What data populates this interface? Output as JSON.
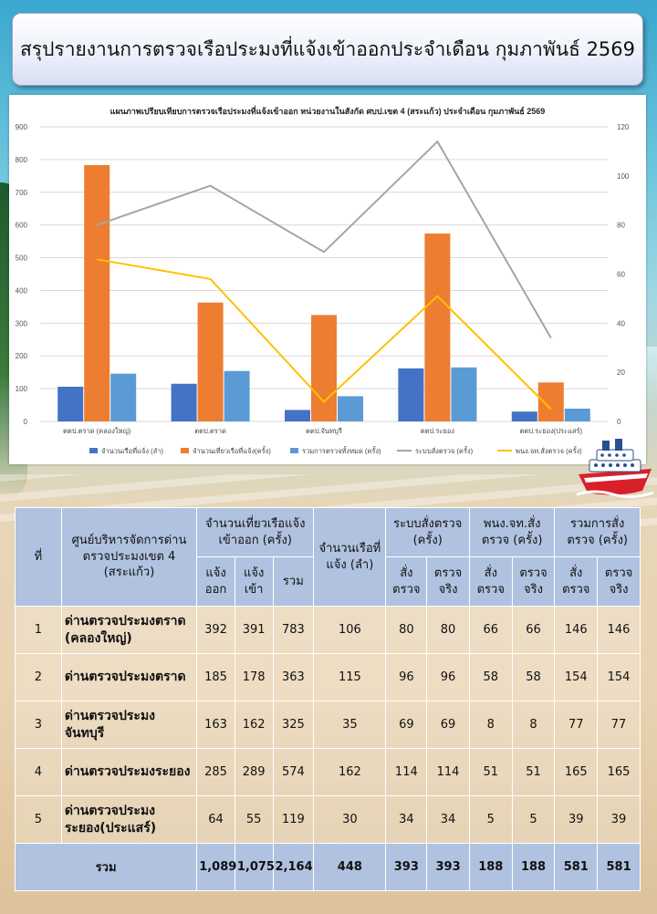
{
  "title": "สรุปรายงานการตรวจเรือประมงที่แจ้งเข้าออกประจำเดือน กุมภาพันธ์ 2569",
  "chart_data": {
    "type": "bar",
    "title": "แผนภาพเปรียบเทียบการตรวจเรือประมงที่แจ้งเข้าออก หน่วยงานในสังกัด ศบป.เขต 4 (สระแก้ว) ประจำเดือน กุมภาพันธ์ 2569",
    "categories": [
      "ตตป.ตราด (คลองใหญ่)",
      "ตตป.ตราด",
      "ตตป.จันทบุรี",
      "ตตป.ระยอง",
      "ตตป.ระยอง(ประแสร์)"
    ],
    "left_axis": {
      "ylim": [
        0,
        900
      ],
      "ticks": [
        0,
        100,
        200,
        300,
        400,
        500,
        600,
        700,
        800,
        900
      ]
    },
    "right_axis": {
      "ylim": [
        0,
        120
      ],
      "ticks": [
        0,
        20,
        40,
        60,
        80,
        100,
        120
      ]
    },
    "grid": true,
    "legend_position": "bottom",
    "series": [
      {
        "name": "จำนวนเรือที่แจ้ง (ลำ)",
        "kind": "bar",
        "axis": "left",
        "color": "#4472c4",
        "values": [
          106,
          115,
          35,
          162,
          30
        ]
      },
      {
        "name": "จำนวนเที่ยวเรือที่แจ้ง(ครั้ง)",
        "kind": "bar",
        "axis": "left",
        "color": "#ed7d31",
        "values": [
          783,
          363,
          325,
          574,
          119
        ]
      },
      {
        "name": "รวมการตรวจทั้งหมด (ครั้ง)",
        "kind": "bar",
        "axis": "left",
        "color": "#5b9bd5",
        "values": [
          146,
          154,
          77,
          165,
          39
        ]
      },
      {
        "name": "ระบบสั่งตรวจ (ครั้ง)",
        "kind": "line",
        "axis": "right",
        "color": "#a5a5a5",
        "values": [
          80,
          96,
          69,
          114,
          34
        ]
      },
      {
        "name": "พนง.จท.สั่งตรวจ (ครั้ง)",
        "kind": "line",
        "axis": "right",
        "color": "#ffc000",
        "values": [
          66,
          58,
          8,
          51,
          5
        ]
      }
    ]
  },
  "table": {
    "headers": {
      "no": "ที่",
      "center": "ศูนย์บริหารจัดการด่านตรวจประมงเขต 4 (สระแก้ว)",
      "trips": "จำนวนเที่ยวเรือแจ้งเข้าออก (ครั้ง)",
      "trips_out": "แจ้งออก",
      "trips_in": "แจ้งเข้า",
      "trips_total": "รวม",
      "boats": "จำนวนเรือที่แจ้ง (ลำ)",
      "system": "ระบบสั่งตรวจ (ครั้ง)",
      "officer": "พนง.จท.สั่งตรวจ (ครั้ง)",
      "total": "รวมการสั่งตรวจ (ครั้ง)",
      "ordered": "สั่งตรวจ",
      "actual": "ตรวจจริง"
    },
    "rows": [
      {
        "no": "1",
        "name": "ด่านตรวจประมงตราด (คลองใหญ่)",
        "out": "392",
        "in": "391",
        "total": "783",
        "boats": "106",
        "sys_ordered": "80",
        "sys_actual": "80",
        "off_ordered": "66",
        "off_actual": "66",
        "tot_ordered": "146",
        "tot_actual": "146"
      },
      {
        "no": "2",
        "name": "ด่านตรวจประมงตราด",
        "out": "185",
        "in": "178",
        "total": "363",
        "boats": "115",
        "sys_ordered": "96",
        "sys_actual": "96",
        "off_ordered": "58",
        "off_actual": "58",
        "tot_ordered": "154",
        "tot_actual": "154"
      },
      {
        "no": "3",
        "name": "ด่านตรวจประมงจันทบุรี",
        "out": "163",
        "in": "162",
        "total": "325",
        "boats": "35",
        "sys_ordered": "69",
        "sys_actual": "69",
        "off_ordered": "8",
        "off_actual": "8",
        "tot_ordered": "77",
        "tot_actual": "77"
      },
      {
        "no": "4",
        "name": "ด่านตรวจประมงระยอง",
        "out": "285",
        "in": "289",
        "total": "574",
        "boats": "162",
        "sys_ordered": "114",
        "sys_actual": "114",
        "off_ordered": "51",
        "off_actual": "51",
        "tot_ordered": "165",
        "tot_actual": "165"
      },
      {
        "no": "5",
        "name": "ด่านตรวจประมงระยอง(ประแสร์)",
        "out": "64",
        "in": "55",
        "total": "119",
        "boats": "30",
        "sys_ordered": "34",
        "sys_actual": "34",
        "off_ordered": "5",
        "off_actual": "5",
        "tot_ordered": "39",
        "tot_actual": "39"
      }
    ],
    "footer": {
      "label": "รวม",
      "out": "1,089",
      "in": "1,075",
      "total": "2,164",
      "boats": "448",
      "sys_ordered": "393",
      "sys_actual": "393",
      "off_ordered": "188",
      "off_actual": "188",
      "tot_ordered": "581",
      "tot_actual": "581"
    }
  }
}
